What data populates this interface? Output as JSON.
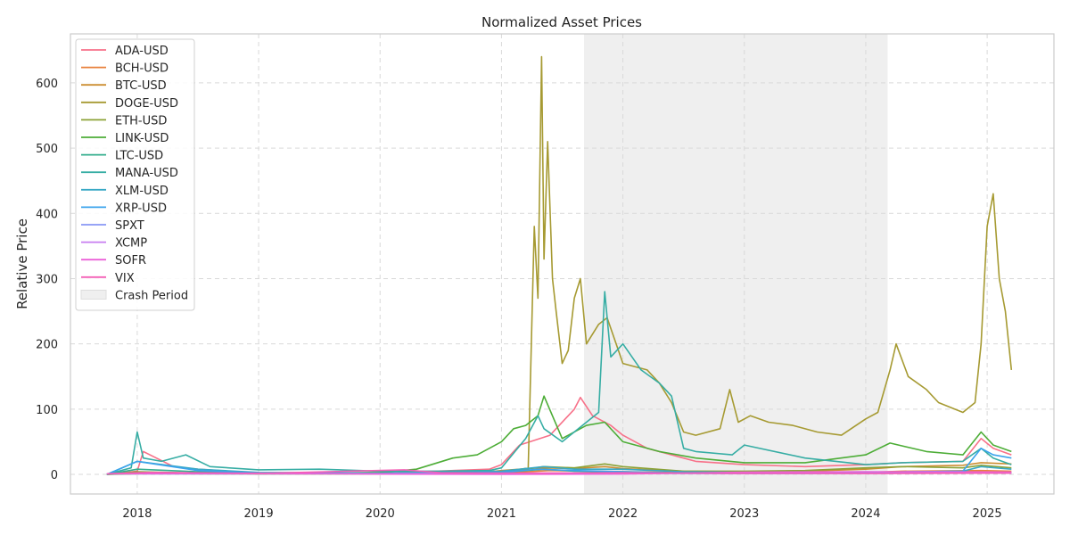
{
  "chart_data": {
    "type": "line",
    "title": "Normalized Asset Prices",
    "xlabel": "",
    "ylabel": "Relative Price",
    "x_range": [
      2017.45,
      2025.55
    ],
    "ylim": [
      -30,
      675
    ],
    "x_ticks": [
      {
        "value": 2018,
        "label": "2018"
      },
      {
        "value": 2019,
        "label": "2019"
      },
      {
        "value": 2020,
        "label": "2020"
      },
      {
        "value": 2021,
        "label": "2021"
      },
      {
        "value": 2022,
        "label": "2022"
      },
      {
        "value": 2023,
        "label": "2023"
      },
      {
        "value": 2024,
        "label": "2024"
      },
      {
        "value": 2025,
        "label": "2025"
      }
    ],
    "y_ticks": [
      0,
      100,
      200,
      300,
      400,
      500,
      600
    ],
    "grid": true,
    "legend_position": "top-left",
    "crash_period": {
      "label": "Crash Period",
      "start": 2021.68,
      "end": 2024.18,
      "color": "#efefef"
    },
    "series": [
      {
        "name": "ADA-USD",
        "color": "#f77189",
        "x": [
          2017.75,
          2018.0,
          2018.05,
          2018.3,
          2018.5,
          2019.0,
          2020.0,
          2020.9,
          2021.0,
          2021.15,
          2021.4,
          2021.6,
          2021.65,
          2021.75,
          2021.9,
          2022.0,
          2022.2,
          2022.4,
          2022.6,
          2023.0,
          2023.5,
          2024.0,
          2024.3,
          2024.8,
          2024.95,
          2025.05,
          2025.2
        ],
        "y": [
          0,
          5,
          35,
          12,
          8,
          2,
          2,
          8,
          15,
          45,
          60,
          100,
          118,
          90,
          75,
          60,
          40,
          30,
          20,
          15,
          12,
          15,
          18,
          20,
          55,
          40,
          30
        ]
      },
      {
        "name": "BCH-USD",
        "color": "#e8803a",
        "x": [
          2017.75,
          2018.0,
          2018.5,
          2019.0,
          2020.0,
          2021.0,
          2021.4,
          2022.0,
          2023.0,
          2024.0,
          2024.3,
          2024.95,
          2025.2
        ],
        "y": [
          0,
          3,
          2,
          1,
          1,
          2,
          6,
          4,
          2,
          3,
          5,
          6,
          5
        ]
      },
      {
        "name": "BTC-USD",
        "color": "#cc8e32",
        "x": [
          2017.75,
          2018.0,
          2018.5,
          2019.0,
          2020.0,
          2020.9,
          2021.0,
          2021.3,
          2021.6,
          2021.85,
          2022.0,
          2022.5,
          2023.0,
          2023.5,
          2024.0,
          2024.3,
          2024.8,
          2024.95,
          2025.2
        ],
        "y": [
          0,
          3,
          2,
          1,
          2,
          4,
          6,
          10,
          9,
          12,
          9,
          5,
          4,
          5,
          8,
          12,
          14,
          18,
          16
        ]
      },
      {
        "name": "DOGE-USD",
        "color": "#a69a32",
        "x": [
          2017.75,
          2018.0,
          2018.5,
          2019.0,
          2020.0,
          2020.9,
          2021.0,
          2021.22,
          2021.27,
          2021.3,
          2021.33,
          2021.35,
          2021.38,
          2021.42,
          2021.45,
          2021.5,
          2021.55,
          2021.6,
          2021.65,
          2021.7,
          2021.8,
          2021.87,
          2022.0,
          2022.2,
          2022.3,
          2022.4,
          2022.5,
          2022.6,
          2022.8,
          2022.88,
          2022.95,
          2023.05,
          2023.2,
          2023.4,
          2023.6,
          2023.8,
          2024.0,
          2024.1,
          2024.2,
          2024.25,
          2024.35,
          2024.5,
          2024.6,
          2024.8,
          2024.9,
          2024.95,
          2025.0,
          2025.05,
          2025.1,
          2025.15,
          2025.2
        ],
        "y": [
          0,
          2,
          1,
          1,
          1,
          1,
          2,
          10,
          380,
          270,
          640,
          330,
          510,
          300,
          250,
          170,
          190,
          270,
          300,
          200,
          230,
          240,
          170,
          160,
          140,
          110,
          65,
          60,
          70,
          130,
          80,
          90,
          80,
          75,
          65,
          60,
          85,
          95,
          160,
          200,
          150,
          130,
          110,
          95,
          110,
          200,
          380,
          430,
          300,
          250,
          160
        ]
      },
      {
        "name": "ETH-USD",
        "color": "#8ba236",
        "x": [
          2017.75,
          2018.0,
          2018.5,
          2019.0,
          2020.0,
          2020.9,
          2021.0,
          2021.35,
          2021.6,
          2021.85,
          2022.0,
          2022.5,
          2023.0,
          2023.5,
          2024.0,
          2024.3,
          2024.8,
          2024.95,
          2025.2
        ],
        "y": [
          0,
          4,
          2,
          1,
          1,
          2,
          3,
          12,
          10,
          16,
          12,
          5,
          5,
          6,
          10,
          12,
          10,
          14,
          10
        ]
      },
      {
        "name": "LINK-USD",
        "color": "#4dad37",
        "x": [
          2017.75,
          2018.0,
          2018.5,
          2019.0,
          2019.5,
          2020.0,
          2020.3,
          2020.6,
          2020.8,
          2021.0,
          2021.1,
          2021.2,
          2021.3,
          2021.35,
          2021.5,
          2021.7,
          2021.85,
          2022.0,
          2022.3,
          2022.6,
          2023.0,
          2023.5,
          2024.0,
          2024.2,
          2024.5,
          2024.8,
          2024.95,
          2025.05,
          2025.2
        ],
        "y": [
          0,
          1,
          1,
          1,
          2,
          3,
          8,
          25,
          30,
          50,
          70,
          75,
          90,
          120,
          55,
          75,
          80,
          50,
          35,
          25,
          18,
          18,
          30,
          48,
          35,
          30,
          65,
          45,
          35
        ]
      },
      {
        "name": "LTC-USD",
        "color": "#34ae8e",
        "x": [
          2017.75,
          2018.0,
          2018.5,
          2019.0,
          2020.0,
          2021.0,
          2021.35,
          2021.6,
          2022.0,
          2022.5,
          2023.0,
          2024.0,
          2024.95,
          2025.2
        ],
        "y": [
          0,
          8,
          4,
          2,
          1,
          3,
          8,
          5,
          4,
          2,
          2,
          2,
          3,
          3
        ]
      },
      {
        "name": "MANA-USD",
        "color": "#36ada4",
        "x": [
          2017.75,
          2017.95,
          2018.0,
          2018.05,
          2018.2,
          2018.4,
          2018.6,
          2019.0,
          2019.5,
          2020.0,
          2020.5,
          2020.9,
          2021.0,
          2021.2,
          2021.3,
          2021.35,
          2021.5,
          2021.7,
          2021.8,
          2021.85,
          2021.9,
          2022.0,
          2022.15,
          2022.3,
          2022.4,
          2022.5,
          2022.6,
          2022.9,
          2023.0,
          2023.5,
          2024.0,
          2024.3,
          2024.8,
          2024.95,
          2025.05,
          2025.2
        ],
        "y": [
          0,
          10,
          65,
          25,
          20,
          30,
          12,
          7,
          8,
          5,
          5,
          6,
          10,
          55,
          90,
          70,
          50,
          80,
          95,
          280,
          180,
          200,
          160,
          140,
          120,
          40,
          35,
          30,
          45,
          25,
          15,
          18,
          20,
          40,
          25,
          15
        ]
      },
      {
        "name": "XLM-USD",
        "color": "#38a9c5",
        "x": [
          2017.75,
          2018.0,
          2018.5,
          2019.0,
          2020.0,
          2021.0,
          2021.35,
          2021.6,
          2022.0,
          2022.5,
          2023.0,
          2024.0,
          2024.8,
          2024.95,
          2025.2
        ],
        "y": [
          0,
          20,
          8,
          3,
          2,
          5,
          12,
          8,
          8,
          4,
          3,
          3,
          5,
          12,
          8
        ]
      },
      {
        "name": "XRP-USD",
        "color": "#3ba3ec",
        "x": [
          2017.75,
          2018.0,
          2018.5,
          2019.0,
          2020.0,
          2021.0,
          2021.3,
          2021.6,
          2022.0,
          2022.5,
          2023.0,
          2024.0,
          2024.8,
          2024.95,
          2025.05,
          2025.2
        ],
        "y": [
          0,
          20,
          6,
          2,
          1,
          3,
          8,
          6,
          4,
          2,
          3,
          3,
          5,
          40,
          30,
          25
        ]
      },
      {
        "name": "SPXT",
        "color": "#8897f4",
        "x": [
          2017.75,
          2019.0,
          2020.0,
          2021.0,
          2022.0,
          2023.0,
          2024.0,
          2025.2
        ],
        "y": [
          1,
          1,
          1,
          1.3,
          1.5,
          1.3,
          1.6,
          1.9
        ]
      },
      {
        "name": "XCMP",
        "color": "#c77cf0",
        "x": [
          2017.75,
          2019.0,
          2020.0,
          2021.0,
          2022.0,
          2023.0,
          2024.0,
          2025.2
        ],
        "y": [
          1,
          1,
          1.1,
          1.5,
          1.8,
          1.4,
          1.9,
          2.3
        ]
      },
      {
        "name": "SOFR",
        "color": "#ec61d9",
        "x": [
          2017.75,
          2018.5,
          2019.0,
          2020.0,
          2021.0,
          2022.0,
          2023.0,
          2024.0,
          2025.2
        ],
        "y": [
          1,
          1.5,
          1.8,
          0.5,
          0.1,
          0.6,
          3.5,
          4.2,
          3.6
        ]
      },
      {
        "name": "VIX",
        "color": "#f45fb5",
        "x": [
          2017.75,
          2018.1,
          2019.0,
          2020.2,
          2020.5,
          2021.0,
          2022.0,
          2023.0,
          2024.0,
          2025.2
        ],
        "y": [
          1,
          3,
          1.5,
          7,
          2.5,
          2,
          2.5,
          1.5,
          1.3,
          2
        ]
      }
    ]
  }
}
